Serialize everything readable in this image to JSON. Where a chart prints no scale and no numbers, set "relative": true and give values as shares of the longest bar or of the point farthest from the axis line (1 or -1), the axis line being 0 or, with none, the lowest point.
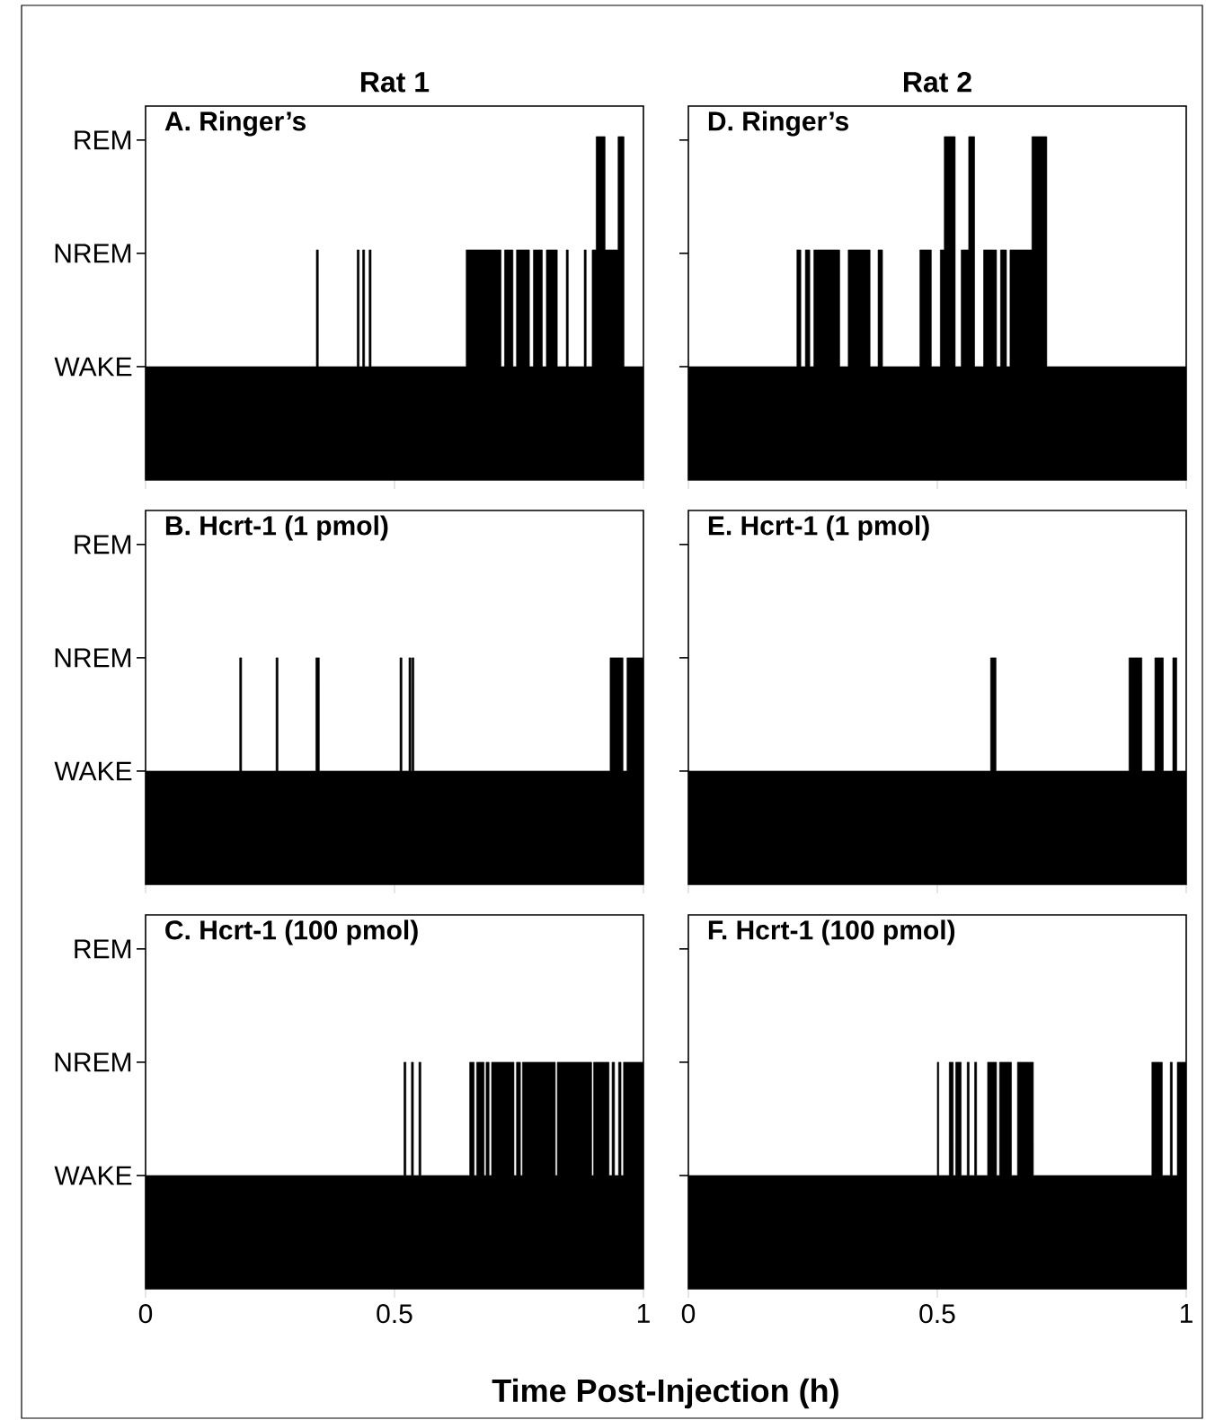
{
  "chart_data": [
    {
      "type": "area",
      "title": "A. Ringer’s",
      "subtitle": "Rat 1",
      "color": "#000000",
      "xlim": [
        0,
        1
      ],
      "xticks": [
        0,
        0.5,
        1
      ],
      "relative": true,
      "tick_labels": false,
      "annotations": [
        "WAKE",
        "NREM",
        "REM"
      ],
      "x": [
        0,
        0.343,
        0.343,
        0.347,
        0.347,
        0.425,
        0.425,
        0.429,
        0.429,
        0.436,
        0.436,
        0.44,
        0.44,
        0.449,
        0.449,
        0.453,
        0.453,
        0.644,
        0.644,
        0.714,
        0.714,
        0.721,
        0.721,
        0.738,
        0.738,
        0.745,
        0.745,
        0.771,
        0.771,
        0.779,
        0.779,
        0.797,
        0.797,
        0.805,
        0.805,
        0.827,
        0.827,
        0.845,
        0.845,
        0.849,
        0.849,
        0.881,
        0.881,
        0.885,
        0.885,
        0.897,
        0.897,
        0.905,
        0.905,
        0.923,
        0.923,
        0.949,
        0.949,
        0.961,
        0.961,
        1
      ],
      "values": [
        0.33,
        0.33,
        0.67,
        0.67,
        0.33,
        0.33,
        0.67,
        0.67,
        0.33,
        0.33,
        0.67,
        0.67,
        0.33,
        0.33,
        0.67,
        0.67,
        0.33,
        0.33,
        0.67,
        0.67,
        0.33,
        0.33,
        0.67,
        0.67,
        0.33,
        0.33,
        0.67,
        0.67,
        0.33,
        0.33,
        0.67,
        0.67,
        0.33,
        0.33,
        0.67,
        0.67,
        0.33,
        0.33,
        0.67,
        0.67,
        0.33,
        0.33,
        0.67,
        0.67,
        0.33,
        0.33,
        0.67,
        0.67,
        1,
        1,
        0.67,
        0.67,
        1,
        1,
        0.33,
        0.33
      ]
    },
    {
      "type": "area",
      "title": "D. Ringer’s",
      "subtitle": "Rat 2",
      "color": "#000000",
      "xlim": [
        0,
        1
      ],
      "xticks": [
        0,
        0.5,
        1
      ],
      "relative": true,
      "tick_labels": false,
      "x": [
        0,
        0.218,
        0.218,
        0.226,
        0.226,
        0.235,
        0.235,
        0.244,
        0.244,
        0.252,
        0.252,
        0.304,
        0.304,
        0.321,
        0.321,
        0.365,
        0.365,
        0.381,
        0.381,
        0.39,
        0.39,
        0.465,
        0.465,
        0.488,
        0.488,
        0.506,
        0.506,
        0.514,
        0.514,
        0.536,
        0.536,
        0.548,
        0.548,
        0.563,
        0.563,
        0.575,
        0.575,
        0.593,
        0.593,
        0.619,
        0.619,
        0.627,
        0.627,
        0.639,
        0.639,
        0.646,
        0.646,
        0.69,
        0.69,
        0.72,
        0.72,
        1
      ],
      "values": [
        0.33,
        0.33,
        0.67,
        0.67,
        0.33,
        0.33,
        0.67,
        0.67,
        0.33,
        0.33,
        0.67,
        0.67,
        0.33,
        0.33,
        0.67,
        0.67,
        0.33,
        0.33,
        0.67,
        0.67,
        0.33,
        0.33,
        0.67,
        0.67,
        0.33,
        0.33,
        0.67,
        0.67,
        1,
        1,
        0.33,
        0.33,
        0.67,
        0.67,
        1,
        1,
        0.33,
        0.33,
        0.67,
        0.67,
        0.33,
        0.33,
        0.67,
        0.67,
        0.33,
        0.33,
        0.67,
        0.67,
        1,
        1,
        0.33,
        0.33
      ]
    },
    {
      "type": "area",
      "title": "B. Hcrt-1 (1 pmol)",
      "color": "#000000",
      "xlim": [
        0,
        1
      ],
      "xticks": [
        0,
        0.5,
        1
      ],
      "relative": true,
      "tick_labels": false,
      "annotations": [
        "WAKE",
        "NREM",
        "REM"
      ],
      "x": [
        0,
        0.189,
        0.189,
        0.193,
        0.193,
        0.262,
        0.262,
        0.266,
        0.266,
        0.342,
        0.342,
        0.349,
        0.349,
        0.511,
        0.511,
        0.515,
        0.515,
        0.529,
        0.529,
        0.533,
        0.533,
        0.535,
        0.535,
        0.539,
        0.539,
        0.933,
        0.933,
        0.959,
        0.959,
        0.967,
        0.967,
        1
      ],
      "values": [
        0.5,
        0.5,
        1,
        1,
        0.5,
        0.5,
        1,
        1,
        0.5,
        0.5,
        1,
        1,
        0.5,
        0.5,
        1,
        1,
        0.5,
        0.5,
        1,
        1,
        0.5,
        0.5,
        1,
        1,
        0.5,
        0.5,
        1,
        1,
        0.5,
        0.5,
        1,
        1
      ]
    },
    {
      "type": "area",
      "title": "E. Hcrt-1 (1 pmol)",
      "color": "#000000",
      "xlim": [
        0,
        1
      ],
      "xticks": [
        0,
        0.5,
        1
      ],
      "relative": true,
      "tick_labels": false,
      "x": [
        0,
        0.607,
        0.607,
        0.618,
        0.618,
        0.885,
        0.885,
        0.911,
        0.911,
        0.937,
        0.937,
        0.954,
        0.954,
        0.973,
        0.973,
        0.981,
        0.981,
        1
      ],
      "values": [
        0.5,
        0.5,
        1,
        1,
        0.5,
        0.5,
        1,
        1,
        0.5,
        0.5,
        1,
        1,
        0.5,
        0.5,
        1,
        1,
        0.5,
        0.5
      ]
    },
    {
      "type": "area",
      "title": "C. Hcrt-1 (100 pmol)",
      "xlabel": "Time Post-Injection (h)",
      "color": "#000000",
      "xlim": [
        0,
        1
      ],
      "xticks": [
        0,
        0.5,
        1
      ],
      "relative": true,
      "tick_labels": "x",
      "annotations": [
        "WAKE",
        "NREM",
        "REM"
      ],
      "x": [
        0,
        0.519,
        0.519,
        0.523,
        0.523,
        0.534,
        0.534,
        0.538,
        0.538,
        0.549,
        0.549,
        0.553,
        0.553,
        0.651,
        0.651,
        0.66,
        0.66,
        0.665,
        0.665,
        0.68,
        0.68,
        0.684,
        0.684,
        0.69,
        0.69,
        0.695,
        0.695,
        0.74,
        0.74,
        0.745,
        0.745,
        0.753,
        0.753,
        0.757,
        0.757,
        0.823,
        0.823,
        0.827,
        0.827,
        0.896,
        0.896,
        0.9,
        0.9,
        0.931,
        0.931,
        0.937,
        0.937,
        0.942,
        0.942,
        0.95,
        0.95,
        0.955,
        0.955,
        0.96,
        0.96,
        1
      ],
      "values": [
        0.5,
        0.5,
        1,
        1,
        0.5,
        0.5,
        1,
        1,
        0.5,
        0.5,
        1,
        1,
        0.5,
        0.5,
        1,
        1,
        0.5,
        0.5,
        1,
        1,
        0.5,
        0.5,
        1,
        1,
        0.5,
        0.5,
        1,
        1,
        0.5,
        0.5,
        1,
        1,
        0.5,
        0.5,
        1,
        1,
        0.5,
        0.5,
        1,
        1,
        0.5,
        0.5,
        1,
        1,
        0.5,
        0.5,
        1,
        1,
        0.5,
        0.5,
        1,
        1,
        0.5,
        0.5,
        1,
        1
      ]
    },
    {
      "type": "area",
      "title": "F. Hcrt-1 (100 pmol)",
      "color": "#000000",
      "xlim": [
        0,
        1
      ],
      "xticks": [
        0,
        0.5,
        1
      ],
      "relative": true,
      "tick_labels": "x",
      "x": [
        0,
        0.5,
        0.5,
        0.503,
        0.503,
        0.524,
        0.524,
        0.532,
        0.532,
        0.537,
        0.537,
        0.548,
        0.548,
        0.56,
        0.56,
        0.564,
        0.564,
        0.575,
        0.575,
        0.579,
        0.579,
        0.601,
        0.601,
        0.619,
        0.619,
        0.625,
        0.625,
        0.649,
        0.649,
        0.661,
        0.661,
        0.693,
        0.693,
        0.931,
        0.931,
        0.952,
        0.952,
        0.968,
        0.968,
        0.972,
        0.972,
        0.982,
        0.982,
        1
      ],
      "values": [
        0.5,
        0.5,
        1,
        1,
        0.5,
        0.5,
        1,
        1,
        0.5,
        0.5,
        1,
        1,
        0.5,
        0.5,
        1,
        1,
        0.5,
        0.5,
        1,
        1,
        0.5,
        0.5,
        1,
        1,
        0.5,
        0.5,
        1,
        1,
        0.5,
        0.5,
        1,
        1,
        0.5,
        0.5,
        1,
        1,
        0.5,
        0.5,
        1,
        1,
        0.5,
        0.5,
        1,
        1
      ]
    }
  ]
}
